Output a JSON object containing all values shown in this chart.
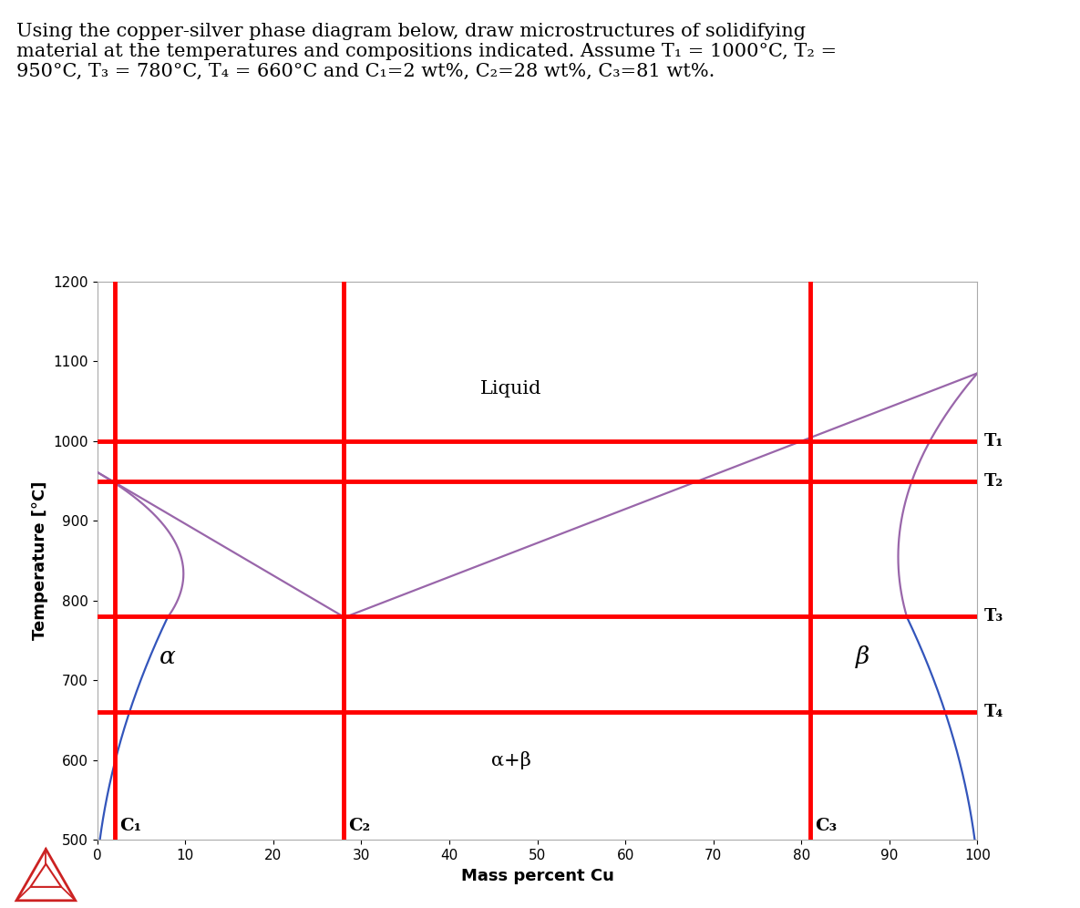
{
  "title_line1": "Using the copper-silver phase diagram below, draw microstructures of solidifying",
  "title_line2": "material at the temperatures and compositions indicated. Assume T₁ = 1000°C, T₂ =",
  "title_line3": "950°C, T₃ = 780°C, T₄ = 660°C and C₁=2 wt%, C₂=28 wt%, C₃=81 wt%.",
  "xlabel": "Mass percent Cu",
  "ylabel": "Temperature [°C]",
  "xlim": [
    0,
    100
  ],
  "ylim": [
    500,
    1200
  ],
  "xticks": [
    0,
    10,
    20,
    30,
    40,
    50,
    60,
    70,
    80,
    90,
    100
  ],
  "yticks": [
    500,
    600,
    700,
    800,
    900,
    1000,
    1100,
    1200
  ],
  "T1": 1000,
  "T2": 950,
  "T3": 780,
  "T4": 660,
  "C1": 2,
  "C2": 28,
  "C3": 81,
  "eutectic_T": 779,
  "eutectic_C": 28.1,
  "Ag_melt": 961,
  "Cu_melt": 1085,
  "red_lw": 3.5,
  "phase_lw": 1.6,
  "purple": "#9966aa",
  "blue": "#3355bb",
  "red": "#ff0000",
  "white": "#ffffff",
  "label_liquid": "Liquid",
  "label_alpha": "α",
  "label_beta": "β",
  "label_alphabeta": "α+β",
  "label_C1": "C₁",
  "label_C2": "C₂",
  "label_C3": "C₃",
  "label_T1": "T₁",
  "label_T2": "T₂",
  "label_T3": "T₃",
  "label_T4": "T₄",
  "logo_color": "#cc2222"
}
